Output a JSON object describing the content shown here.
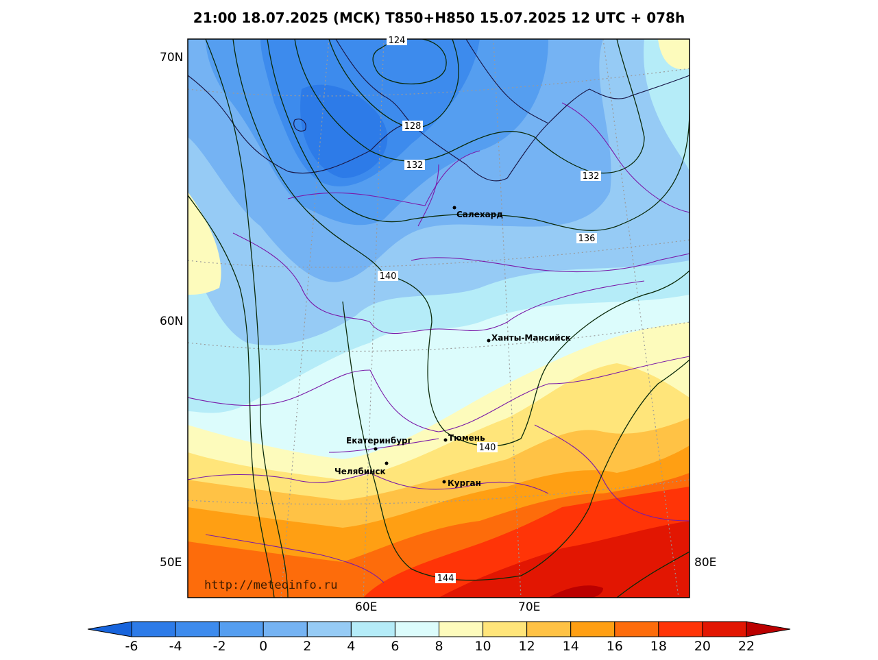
{
  "title": "21:00 18.07.2025 (МСК) T850+H850 15.07.2025 12 UTC + 078h",
  "lat_labels": [
    "70N",
    "60N",
    "50E"
  ],
  "lon_labels": [
    "60E",
    "70E",
    "80E"
  ],
  "watermark": "http://meteoinfo.ru",
  "cities": [
    {
      "name": "Салехард"
    },
    {
      "name": "Ханты-Мансийск"
    },
    {
      "name": "Екатеринбург"
    },
    {
      "name": "Тюмень"
    },
    {
      "name": "Челябинск"
    },
    {
      "name": "Курган"
    }
  ],
  "contour_labels": [
    "124",
    "128",
    "132",
    "132",
    "136",
    "140",
    "140",
    "144"
  ],
  "colorbar": {
    "ticks": [
      "-6",
      "-4",
      "-2",
      "0",
      "2",
      "4",
      "6",
      "8",
      "10",
      "12",
      "14",
      "16",
      "18",
      "20",
      "22"
    ],
    "colors": [
      "#2d7be8",
      "#3d8bed",
      "#559ef0",
      "#75b3f3",
      "#96cbf5",
      "#b5ecf8",
      "#dcfcfc",
      "#fdfbbc",
      "#ffe57a",
      "#ffc245",
      "#ff9f13",
      "#fd6c0b",
      "#ff3407",
      "#e21602"
    ],
    "low_color": "#1764dc",
    "high_color": "#bb0000"
  }
}
